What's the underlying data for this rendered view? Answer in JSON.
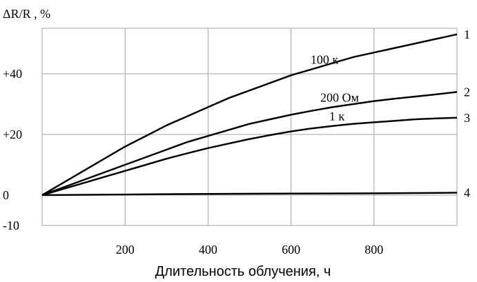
{
  "chart_data": {
    "type": "line",
    "ylabel": "ΔR/R , %",
    "xlabel": "Длительность облучения, ч",
    "xlim": [
      0,
      1000
    ],
    "ylim": [
      -10,
      55
    ],
    "x_ticks": [
      200,
      400,
      600,
      800
    ],
    "x_tick_labels": [
      "200",
      "400",
      "600",
      "800"
    ],
    "y_ticks": [
      -10,
      0,
      20,
      40
    ],
    "y_tick_labels": [
      "-10",
      "0",
      "+20",
      "+40"
    ],
    "grid": true,
    "series": [
      {
        "name": "100 к",
        "number": "1",
        "x": [
          0,
          50,
          100,
          150,
          200,
          250,
          300,
          350,
          400,
          450,
          500,
          550,
          600,
          650,
          700,
          750,
          800,
          850,
          900,
          950,
          1000
        ],
        "values": [
          0,
          4,
          8,
          12,
          16,
          19.5,
          23,
          26,
          29,
          32,
          34.5,
          37,
          39.5,
          41.5,
          43.5,
          45.5,
          47,
          48.5,
          50,
          51.5,
          53
        ]
      },
      {
        "name": "200 Ом",
        "number": "2",
        "x": [
          0,
          50,
          100,
          150,
          200,
          250,
          300,
          350,
          400,
          450,
          500,
          550,
          600,
          650,
          700,
          750,
          800,
          850,
          900,
          950,
          1000
        ],
        "values": [
          0,
          2.5,
          5,
          7.5,
          10,
          12.5,
          15,
          17.5,
          19.5,
          21.5,
          23.5,
          25,
          26.5,
          27.8,
          29,
          30,
          31,
          31.8,
          32.5,
          33.2,
          34
        ]
      },
      {
        "name": "1 к",
        "number": "3",
        "x": [
          0,
          50,
          100,
          150,
          200,
          250,
          300,
          350,
          400,
          450,
          500,
          550,
          600,
          650,
          700,
          750,
          800,
          850,
          900,
          950,
          1000
        ],
        "values": [
          0,
          2,
          4,
          6,
          8,
          10,
          12,
          13.8,
          15.5,
          17,
          18.5,
          19.8,
          21,
          22,
          22.8,
          23.5,
          24,
          24.5,
          25,
          25.3,
          25.5
        ]
      },
      {
        "name": "",
        "number": "4",
        "x": [
          0,
          200,
          400,
          600,
          800,
          1000
        ],
        "values": [
          0,
          0.2,
          0.4,
          0.5,
          0.6,
          0.8
        ]
      }
    ]
  }
}
